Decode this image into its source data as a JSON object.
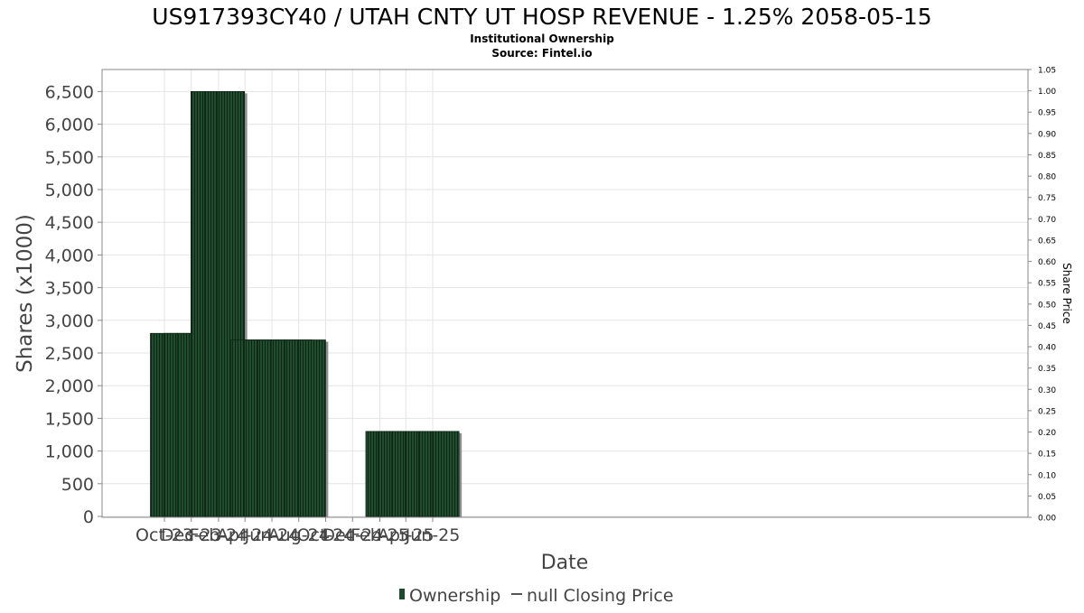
{
  "chart_data": {
    "type": "bar",
    "title": "US917393CY40 / UTAH CNTY UT HOSP REVENUE - 1.25% 2058-05-15",
    "subtitle": "Institutional Ownership",
    "source": "Source: Fintel.io",
    "xlabel": "Date",
    "ylabel": "Shares (x1000)",
    "y2label": "Share Price",
    "ylim": [
      0,
      6800
    ],
    "y2lim": [
      0,
      1.05
    ],
    "yticks": [
      "0",
      "500",
      "1,000",
      "1,500",
      "2,000",
      "2,500",
      "3,000",
      "3,500",
      "4,000",
      "4,500",
      "5,000",
      "5,500",
      "6,000",
      "6,500"
    ],
    "y2ticks": [
      "0.00",
      "0.05",
      "0.10",
      "0.15",
      "0.20",
      "0.25",
      "0.30",
      "0.35",
      "0.40",
      "0.45",
      "0.50",
      "0.55",
      "0.60",
      "0.65",
      "0.70",
      "0.75",
      "0.80",
      "0.85",
      "0.90",
      "0.95",
      "1.00",
      "1.05"
    ],
    "xticks": [
      "Oct-23",
      "Dec-23",
      "Feb-24",
      "Apr-24",
      "Jun-24",
      "Aug-24",
      "Oct-24",
      "Dec-24",
      "Feb-25",
      "Apr-25",
      "Jun-25"
    ],
    "categories": [
      "2023-09-30",
      "2023-10-31",
      "2023-11-30",
      "2023-12-31",
      "2024-01-31",
      "2024-02-29",
      "2024-03-31",
      "2024-04-30",
      "2024-05-31",
      "2024-06-30",
      "2024-07-31",
      "2024-08-31",
      "2024-09-30",
      "2024-10-31",
      "2024-11-30",
      "2024-12-31",
      "2025-01-31",
      "2025-02-28",
      "2025-03-31",
      "2025-04-30",
      "2025-05-31",
      "2025-06-30"
    ],
    "series": [
      {
        "name": "Ownership",
        "color": "#1e4a2c",
        "values": [
          2800,
          2800,
          2800,
          6500,
          6500,
          6500,
          2700,
          2700,
          2700,
          2700,
          2700,
          2700,
          0,
          0,
          0,
          0,
          1300,
          1300,
          1300,
          1300,
          1300,
          1300
        ]
      }
    ],
    "legend": [
      {
        "label": "Ownership",
        "marker": "bar",
        "color": "#1e4a2c"
      },
      {
        "label": "null Closing Price",
        "marker": "line",
        "color": "#555555"
      }
    ],
    "legend_position": "bottom",
    "grid": true
  }
}
